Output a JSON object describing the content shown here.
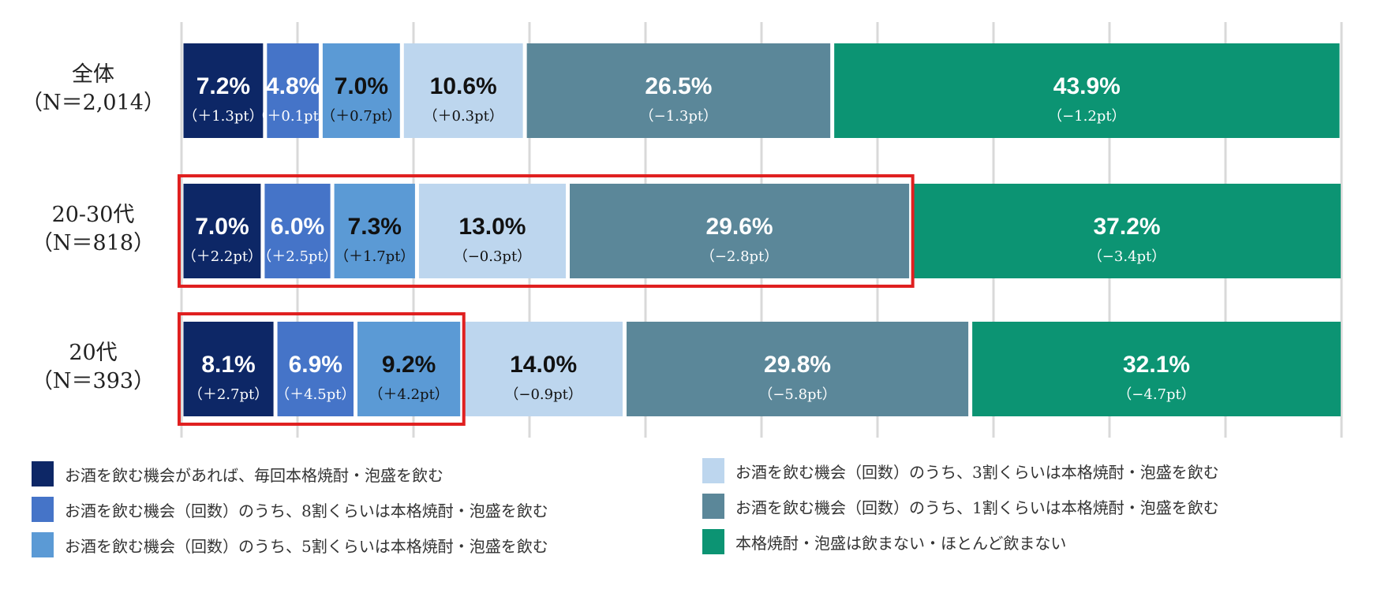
{
  "chart_data": {
    "type": "bar",
    "orientation": "horizontal-stacked-100",
    "xlim": [
      0,
      100
    ],
    "grid": true,
    "categories": [
      {
        "label": "全体",
        "n": "（N＝2,014）"
      },
      {
        "label": "20-30代",
        "n": "（N＝818）"
      },
      {
        "label": "20代",
        "n": "（N＝393）"
      }
    ],
    "series": [
      {
        "name": "お酒を飲む機会があれば、毎回本格焼酎・泡盛を飲む",
        "color": "#0d2766",
        "text_color": "#ffffff",
        "values": [
          7.2,
          7.0,
          8.1
        ],
        "value_labels": [
          "7.2%",
          "7.0%",
          "8.1%"
        ],
        "changes": [
          "（＋1.3pt）",
          "（＋2.2pt）",
          "（＋2.7pt）"
        ]
      },
      {
        "name": "お酒を飲む機会（回数）のうち、8割くらいは本格焼酎・泡盛を飲む",
        "color": "#4574c8",
        "text_color": "#ffffff",
        "values": [
          4.8,
          6.0,
          6.9
        ],
        "value_labels": [
          "4.8%",
          "6.0%",
          "6.9%"
        ],
        "changes": [
          "（＋0.1pt）",
          "（＋2.5pt）",
          "（＋4.5pt）"
        ]
      },
      {
        "name": "お酒を飲む機会（回数）のうち、5割くらいは本格焼酎・泡盛を飲む",
        "color": "#5b9ad5",
        "text_color": "#111111",
        "values": [
          7.0,
          7.3,
          9.2
        ],
        "value_labels": [
          "7.0%",
          "7.3%",
          "9.2%"
        ],
        "changes": [
          "（＋0.7pt）",
          "（＋1.7pt）",
          "（＋4.2pt）"
        ]
      },
      {
        "name": "お酒を飲む機会（回数）のうち、3割くらいは本格焼酎・泡盛を飲む",
        "color": "#bdd6ee",
        "text_color": "#111111",
        "values": [
          10.6,
          13.0,
          14.0
        ],
        "value_labels": [
          "10.6%",
          "13.0%",
          "14.0%"
        ],
        "changes": [
          "（＋0.3pt）",
          "（−0.3pt）",
          "（−0.9pt）"
        ]
      },
      {
        "name": "お酒を飲む機会（回数）のうち、1割くらいは本格焼酎・泡盛を飲む",
        "color": "#5b8799",
        "text_color": "#ffffff",
        "values": [
          26.5,
          29.6,
          29.8
        ],
        "value_labels": [
          "26.5%",
          "29.6%",
          "29.8%"
        ],
        "changes": [
          "（−1.3pt）",
          "（−2.8pt）",
          "（−5.8pt）"
        ]
      },
      {
        "name": "本格焼酎・泡盛は飲まない・ほとんど飲まない",
        "color": "#0c9473",
        "text_color": "#ffffff",
        "values": [
          43.9,
          37.2,
          32.1
        ],
        "value_labels": [
          "43.9%",
          "37.2%",
          "32.1%"
        ],
        "changes": [
          "（−1.2pt）",
          "（−3.4pt）",
          "（−4.7pt）"
        ]
      }
    ],
    "highlights": [
      {
        "row": 1,
        "from_series": 0,
        "to_series": 4,
        "color": "#e02020"
      },
      {
        "row": 2,
        "from_series": 0,
        "to_series": 2,
        "color": "#e02020"
      }
    ],
    "legend_position": "bottom"
  }
}
